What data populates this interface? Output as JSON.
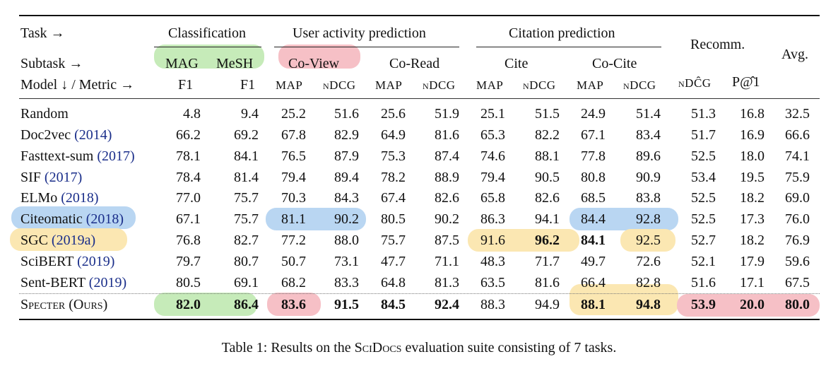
{
  "header": {
    "task_label": "Task →",
    "subtask_label": "Subtask →",
    "model_metric_label": "Model ↓ / Metric →",
    "groups": [
      "Classification",
      "User activity prediction",
      "Citation prediction",
      "Recomm.",
      "Avg."
    ],
    "subtasks": [
      "MAG",
      "MeSH",
      "Co-View",
      "Co-Read",
      "Cite",
      "Co-Cite"
    ],
    "metrics": [
      "F1",
      "F1",
      "MAP",
      "nDCG",
      "MAP",
      "nDCG",
      "MAP",
      "nDCG",
      "MAP",
      "nDCG",
      "nDĈG",
      "P@̂1"
    ]
  },
  "rows": [
    {
      "name": "Random",
      "ref": "",
      "values": [
        "4.8",
        "9.4",
        "25.2",
        "51.6",
        "25.6",
        "51.9",
        "25.1",
        "51.5",
        "24.9",
        "51.4",
        "51.3",
        "16.8",
        "32.5"
      ]
    },
    {
      "name": "Doc2vec",
      "ref": "(2014)",
      "values": [
        "66.2",
        "69.2",
        "67.8",
        "82.9",
        "64.9",
        "81.6",
        "65.3",
        "82.2",
        "67.1",
        "83.4",
        "51.7",
        "16.9",
        "66.6"
      ]
    },
    {
      "name": "Fasttext-sum",
      "ref": "(2017)",
      "values": [
        "78.1",
        "84.1",
        "76.5",
        "87.9",
        "75.3",
        "87.4",
        "74.6",
        "88.1",
        "77.8",
        "89.6",
        "52.5",
        "18.0",
        "74.1"
      ]
    },
    {
      "name": "SIF",
      "ref": "(2017)",
      "values": [
        "78.4",
        "81.4",
        "79.4",
        "89.4",
        "78.2",
        "88.9",
        "79.4",
        "90.5",
        "80.8",
        "90.9",
        "53.4",
        "19.5",
        "75.9"
      ]
    },
    {
      "name": "ELMo",
      "ref": "(2018)",
      "values": [
        "77.0",
        "75.7",
        "70.3",
        "84.3",
        "67.4",
        "82.6",
        "65.8",
        "82.6",
        "68.5",
        "83.8",
        "52.5",
        "18.2",
        "69.0"
      ]
    },
    {
      "name": "Citeomatic",
      "ref": "(2018)",
      "values": [
        "67.1",
        "75.7",
        "81.1",
        "90.2",
        "80.5",
        "90.2",
        "86.3",
        "94.1",
        "84.4",
        "92.8",
        "52.5",
        "17.3",
        "76.0"
      ]
    },
    {
      "name": "SGC",
      "ref": "(2019a)",
      "values": [
        "76.8",
        "82.7",
        "77.2",
        "88.0",
        "75.7",
        "87.5",
        "91.6",
        "96.2",
        "84.1",
        "92.5",
        "52.7",
        "18.2",
        "76.9"
      ]
    },
    {
      "name": "SciBERT",
      "ref": "(2019)",
      "values": [
        "79.7",
        "80.7",
        "50.7",
        "73.1",
        "47.7",
        "71.1",
        "48.3",
        "71.7",
        "49.7",
        "72.6",
        "52.1",
        "17.9",
        "59.6"
      ]
    },
    {
      "name": "Sent-BERT",
      "ref": "(2019)",
      "values": [
        "80.5",
        "69.1",
        "68.2",
        "83.3",
        "64.8",
        "81.3",
        "63.5",
        "81.6",
        "66.4",
        "82.8",
        "51.6",
        "17.1",
        "67.5"
      ]
    },
    {
      "name": "Specter (Ours)",
      "ref": "",
      "values": [
        "82.0",
        "86.4",
        "83.6",
        "91.5",
        "84.5",
        "92.4",
        "88.3",
        "94.9",
        "88.1",
        "94.8",
        "53.9",
        "20.0",
        "80.0"
      ]
    }
  ],
  "bold_cells": [
    [
      6,
      7
    ],
    [
      6,
      8
    ],
    [
      9,
      0
    ],
    [
      9,
      1
    ],
    [
      9,
      2
    ],
    [
      9,
      3
    ],
    [
      9,
      4
    ],
    [
      9,
      5
    ],
    [
      9,
      8
    ],
    [
      9,
      9
    ],
    [
      9,
      10
    ],
    [
      9,
      11
    ],
    [
      9,
      12
    ]
  ],
  "highlight_colors": {
    "green": "#c6ebb9",
    "pink": "#f6c0c6",
    "blue": "#b9d6f2",
    "yellow": "#fbe7b2",
    "link": "#1a2e8a"
  },
  "caption": {
    "prefix": "Table 1: Results on the ",
    "dataset": "SciDocs",
    "suffix": " evaluation suite consisting of 7 tasks."
  }
}
